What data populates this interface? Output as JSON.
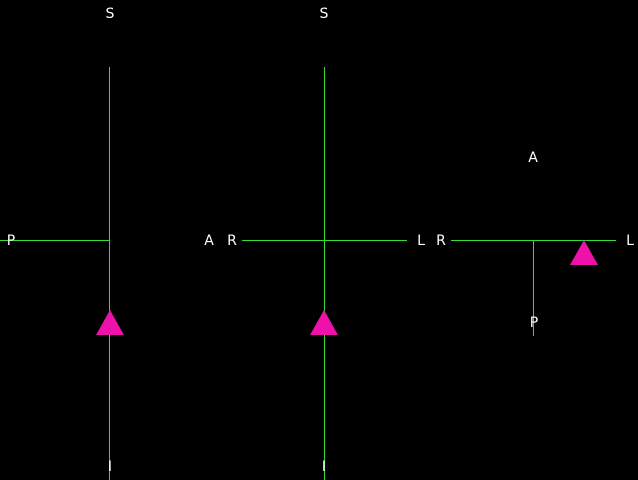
{
  "colors": {
    "background": "#000000",
    "crosshair": "#33dd33",
    "label": "#ffffff",
    "marker": "#ee11aa"
  },
  "views": [
    {
      "name": "left",
      "labels": {
        "top": "S",
        "left": "P",
        "bottom": "I"
      },
      "marker_icon": "triangle-marker-icon"
    },
    {
      "name": "middle",
      "labels": {
        "top": "S",
        "left": "A",
        "right": "L",
        "bottom": "I"
      },
      "marker_icon": "triangle-marker-icon"
    },
    {
      "name": "right",
      "labels": {
        "top": "A",
        "left": "R",
        "right": "L",
        "bottom": "P"
      },
      "marker_icon": "triangle-marker-icon"
    }
  ],
  "middle_view_left_label_extra": "R"
}
